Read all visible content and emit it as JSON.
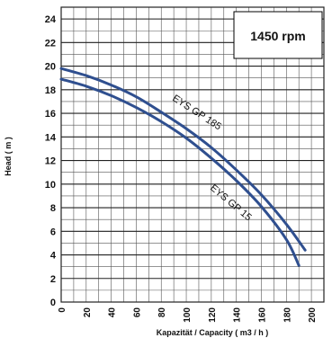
{
  "chart_data": {
    "type": "line",
    "xlabel": "Kapazität / Capacity   ( m3 / h )",
    "ylabel": "Head ( m )",
    "xlim": [
      0,
      210
    ],
    "ylim": [
      0,
      25
    ],
    "x_ticks": [
      0,
      20,
      40,
      60,
      80,
      100,
      120,
      140,
      160,
      180,
      200
    ],
    "y_ticks": [
      0,
      2,
      4,
      6,
      8,
      10,
      12,
      14,
      16,
      18,
      20,
      22,
      24
    ],
    "grid": true,
    "annotation": "1450 rpm",
    "series": [
      {
        "name": "EYS GP 185",
        "color": "#2f4f8f",
        "x": [
          0,
          20,
          40,
          60,
          80,
          100,
          120,
          140,
          160,
          180,
          195
        ],
        "y": [
          19.8,
          19.2,
          18.4,
          17.4,
          16.1,
          14.7,
          13.1,
          11.2,
          9.1,
          6.6,
          4.4
        ]
      },
      {
        "name": "EYS GP 15",
        "color": "#2f4f8f",
        "x": [
          0,
          20,
          40,
          60,
          80,
          100,
          120,
          140,
          160,
          180,
          190
        ],
        "y": [
          18.9,
          18.3,
          17.5,
          16.5,
          15.3,
          13.9,
          12.2,
          10.3,
          8.1,
          5.3,
          3.1
        ]
      }
    ]
  }
}
